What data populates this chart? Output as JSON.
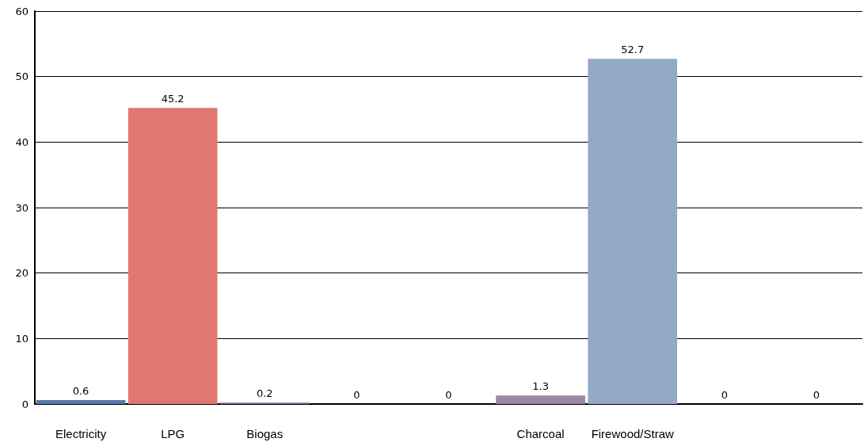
{
  "chart_data": {
    "type": "bar",
    "categories": [
      "Electricity",
      "LPG",
      "Biogas",
      null,
      null,
      "Charcoal",
      "Firewood/Straw",
      null,
      null
    ],
    "values": [
      0.6,
      45.2,
      0.2,
      0,
      0,
      1.3,
      52.7,
      0,
      0
    ],
    "colors": [
      "#5a7bab",
      "#e07870",
      "#8a6f9a",
      "#7f7f7f",
      "#7f7f7f",
      "#9b86a4",
      "#94a9c6",
      "#7f7f7f",
      "#7f7f7f"
    ],
    "ylim": [
      0,
      60
    ],
    "yticks": [
      0,
      10,
      20,
      30,
      40,
      50,
      60
    ],
    "grid": "y",
    "data_labels": true
  }
}
